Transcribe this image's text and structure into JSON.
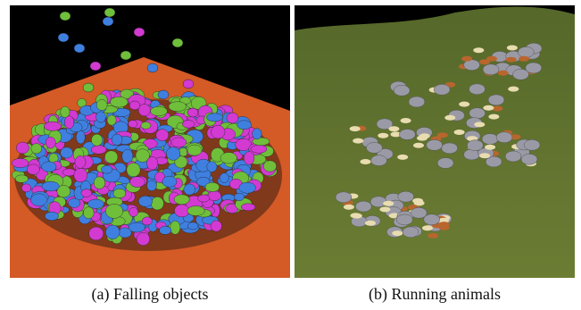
{
  "figure": {
    "panels": [
      {
        "caption": "(a) Falling objects",
        "scene": "falling-objects-simulation",
        "colors": {
          "sky": "#000000",
          "floor": "#d45a26",
          "object_green": "#6fbf3a",
          "object_blue": "#3f7fe0",
          "object_magenta": "#d23ad2"
        }
      },
      {
        "caption": "(b) Running animals",
        "scene": "running-animals-simulation",
        "colors": {
          "sky": "#000000",
          "grass": "#5c6f2a",
          "elephant": "#9a9aa6",
          "horse_cream": "#e8dcb0",
          "horse_brown": "#b8662e"
        }
      }
    ]
  }
}
